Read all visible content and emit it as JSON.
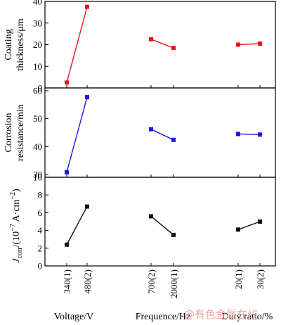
{
  "chart_data": [
    {
      "type": "line",
      "ylabel_line1": "Coating",
      "ylabel_line2": "thickness/μm",
      "ylim": [
        0,
        40
      ],
      "yticks": [
        "0",
        "10",
        "20",
        "30",
        "40"
      ],
      "color": "#e8141c",
      "groups": [
        {
          "name": "Voltage/V",
          "values": [
            2.5,
            37.5
          ]
        },
        {
          "name": "Frequence/Hz",
          "values": [
            22.5,
            18.5
          ]
        },
        {
          "name": "Duty ratio/%",
          "values": [
            20.0,
            20.5
          ]
        }
      ]
    },
    {
      "type": "line",
      "ylabel_line1": "Corrosion",
      "ylabel_line2": "resistance/min",
      "ylim": [
        29,
        61
      ],
      "yticks": [
        "30",
        "40",
        "50",
        "60"
      ],
      "color": "#1818e0",
      "groups": [
        {
          "name": "Voltage/V",
          "values": [
            30.8,
            57.7
          ]
        },
        {
          "name": "Frequence/Hz",
          "values": [
            46.2,
            42.4
          ]
        },
        {
          "name": "Duty ratio/%",
          "values": [
            44.5,
            44.3
          ]
        }
      ]
    },
    {
      "type": "line",
      "ylabel_main": "J",
      "ylabel_sub": "corr",
      "ylabel_unit": "/(10",
      "ylabel_exp": "−7",
      "ylabel_unit2": " A·cm",
      "ylabel_exp2": "−2",
      "ylabel_close": ")",
      "ylim": [
        0,
        10
      ],
      "yticks": [
        "0",
        "2",
        "4",
        "6",
        "8",
        "10"
      ],
      "color": "#111111",
      "groups": [
        {
          "name": "Voltage/V",
          "values": [
            2.4,
            6.7
          ]
        },
        {
          "name": "Frequence/Hz",
          "values": [
            5.6,
            3.5
          ]
        },
        {
          "name": "Duty ratio/%",
          "values": [
            4.1,
            5.0
          ]
        }
      ]
    }
  ],
  "x_tick_labels": [
    "340(1)",
    "480(2)",
    "700(2)",
    "2000(1)",
    "20(1)",
    "30(2)"
  ],
  "x_group_labels": [
    "Voltage/V",
    "Frequence/Hz",
    "Duty ratio/%"
  ],
  "watermark": "@有色金属在线"
}
